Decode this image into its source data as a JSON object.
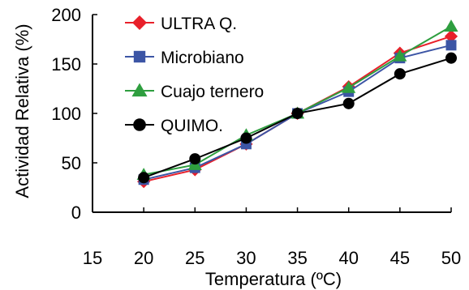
{
  "chart_data": {
    "type": "line",
    "xlabel": "Temperatura (ºC)",
    "ylabel": "Actividad Relativa (%)",
    "xlim": [
      15,
      50
    ],
    "ylim": [
      0,
      200
    ],
    "x_ticks": [
      "15",
      "20",
      "25",
      "30",
      "35",
      "40",
      "45",
      "50"
    ],
    "y_ticks": [
      "0",
      "50",
      "100",
      "150",
      "200"
    ],
    "grid": false,
    "legend_position": "top-left",
    "x": [
      20,
      25,
      30,
      35,
      40,
      45,
      50
    ],
    "series": [
      {
        "name": "ULTRA Q.",
        "color": "#e8202a",
        "marker": "diamond",
        "values": [
          31,
          43,
          69,
          100,
          127,
          161,
          178
        ]
      },
      {
        "name": "Microbiano",
        "color": "#3c55a5",
        "marker": "square",
        "values": [
          33,
          45,
          69,
          100,
          122,
          156,
          169
        ]
      },
      {
        "name": "Cuajo ternero",
        "color": "#2e9e3f",
        "marker": "triangle",
        "values": [
          38,
          48,
          78,
          100,
          126,
          158,
          188
        ]
      },
      {
        "name": "QUIMO.",
        "color": "#000000",
        "marker": "circle",
        "values": [
          35,
          54,
          75,
          100,
          110,
          140,
          156
        ]
      }
    ]
  }
}
